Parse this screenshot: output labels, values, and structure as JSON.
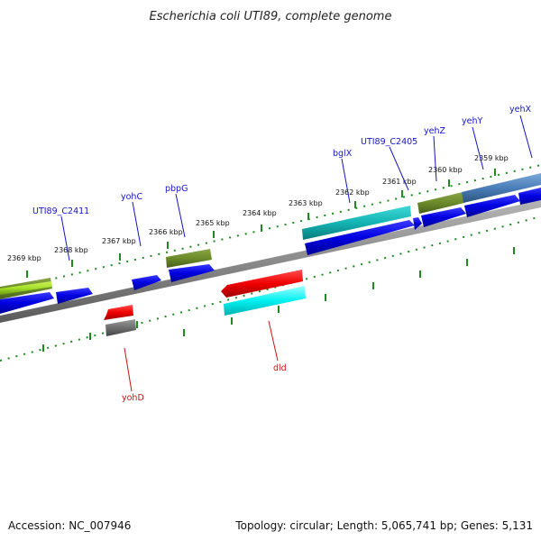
{
  "title": "Escherichia coli UTI89, complete genome",
  "footer": {
    "accession": "Accession: NC_007946",
    "summary": "Topology: circular; Length: 5,065,741 bp; Genes: 5,131"
  },
  "colors": {
    "backbone": "#8a8a8a",
    "ticks": "#1f8a1f",
    "label_plus": "#1414c8",
    "label_minus": "#c81414"
  },
  "ticks": [
    {
      "label": "2369 kbp"
    },
    {
      "label": "2368 kbp"
    },
    {
      "label": "2367 kbp"
    },
    {
      "label": "2366 kbp"
    },
    {
      "label": "2365 kbp"
    },
    {
      "label": "2364 kbp"
    },
    {
      "label": "2363 kbp"
    },
    {
      "label": "2362 kbp"
    },
    {
      "label": "2361 kbp"
    },
    {
      "label": "2360 kbp"
    },
    {
      "label": "2359 kbp"
    }
  ],
  "gene_labels": [
    {
      "name": "UTI89_C2411",
      "strand": "plus"
    },
    {
      "name": "yohC",
      "strand": "plus"
    },
    {
      "name": "pbpG",
      "strand": "plus"
    },
    {
      "name": "bglX",
      "strand": "plus"
    },
    {
      "name": "UTI89_C2405",
      "strand": "plus"
    },
    {
      "name": "yehZ",
      "strand": "plus"
    },
    {
      "name": "yehY",
      "strand": "plus"
    },
    {
      "name": "yehX",
      "strand": "plus"
    },
    {
      "name": "yohD",
      "strand": "minus"
    },
    {
      "name": "dld",
      "strand": "minus"
    }
  ]
}
